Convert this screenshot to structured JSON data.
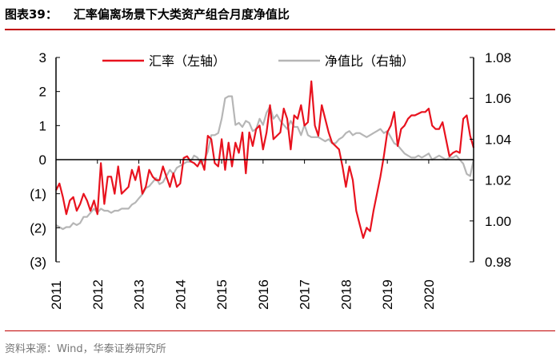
{
  "title": {
    "number": "图表39：",
    "text": "汇率偏离场景下大类资产组合月度净值比"
  },
  "source": "资料来源：Wind，华泰证券研究所",
  "colors": {
    "fx": "#e8121e",
    "nav": "#b6b6b6",
    "accent": "#c00000"
  },
  "chart_data": {
    "type": "line",
    "title": "汇率偏离场景下大类资产组合月度净值比",
    "x_start": "2011-01",
    "x_end": "2020-05",
    "x_ticks": [
      "2011",
      "2012",
      "2013",
      "2014",
      "2015",
      "2016",
      "2017",
      "2018",
      "2019",
      "2020"
    ],
    "left_axis": {
      "range": [
        -3,
        3
      ],
      "ticks": [
        "3",
        "2",
        "1",
        "0",
        "(1)",
        "(2)",
        "(3)"
      ]
    },
    "right_axis": {
      "range": [
        0.98,
        1.08
      ],
      "ticks": [
        "1.08",
        "1.06",
        "1.04",
        "1.02",
        "1.00",
        "0.98"
      ]
    },
    "legend_position": "top",
    "series": [
      {
        "name": "汇率（左轴）",
        "axis": "left",
        "color": "#e8121e",
        "values": [
          -0.9,
          -0.7,
          -1.1,
          -1.6,
          -1.2,
          -1.1,
          -1.5,
          -1.3,
          -1.0,
          -1.2,
          -1.5,
          -1.2,
          -1.6,
          -0.1,
          -1.3,
          -0.5,
          -0.5,
          -1.0,
          -0.2,
          -1.0,
          -0.9,
          -0.8,
          -0.3,
          -0.6,
          -0.2,
          -1.0,
          -0.8,
          -0.3,
          -0.5,
          -0.6,
          -0.6,
          -0.2,
          -0.5,
          -0.8,
          -0.4,
          -0.8,
          -0.7,
          0.05,
          0.1,
          -0.05,
          -0.1,
          -0.2,
          0.0,
          -0.3,
          0.7,
          0.6,
          -0.1,
          -0.2,
          0.6,
          -0.3,
          0.5,
          -0.2,
          0.5,
          0.2,
          0.8,
          -0.4,
          0.8,
          0.4,
          0.9,
          1.0,
          0.3,
          0.8,
          1.6,
          0.6,
          0.7,
          0.8,
          1.5,
          1.2,
          0.3,
          1.3,
          1.2,
          1.6,
          1.0,
          1.1,
          2.3,
          1.0,
          0.7,
          1.6,
          1.2,
          0.8,
          0.5,
          0.4,
          0.3,
          -0.2,
          -0.8,
          -0.2,
          -0.6,
          -1.5,
          -1.9,
          -2.3,
          -2.0,
          -2.1,
          -1.5,
          -1.0,
          -0.5,
          0.1,
          0.8,
          1.0,
          1.4,
          0.4,
          0.9,
          1.0,
          1.2,
          1.3,
          1.3,
          1.35,
          1.4,
          1.4,
          1.5,
          1.0,
          0.9,
          0.9,
          1.1,
          0.6,
          0.1,
          0.2,
          0.25,
          0.2,
          1.2,
          1.3,
          0.7,
          0.35
        ]
      },
      {
        "name": "净值比（右轴）",
        "axis": "right",
        "color": "#b6b6b6",
        "values": [
          0.998,
          0.997,
          0.996,
          0.997,
          0.997,
          0.999,
          0.998,
          0.999,
          1.002,
          1.002,
          1.004,
          1.006,
          1.004,
          1.006,
          1.005,
          1.005,
          1.004,
          1.005,
          1.005,
          1.006,
          1.006,
          1.006,
          1.008,
          1.009,
          1.011,
          1.013,
          1.016,
          1.017,
          1.019,
          1.021,
          1.018,
          1.019,
          1.022,
          1.025,
          1.023,
          1.026,
          1.027,
          1.028,
          1.029,
          1.029,
          1.032,
          1.031,
          1.028,
          1.03,
          1.034,
          1.042,
          1.042,
          1.043,
          1.05,
          1.06,
          1.061,
          1.061,
          1.047,
          1.048,
          1.046,
          1.049,
          1.048,
          1.044,
          1.045,
          1.05,
          1.047,
          1.053,
          1.056,
          1.05,
          1.052,
          1.049,
          1.047,
          1.045,
          1.049,
          1.046,
          1.046,
          1.042,
          1.047,
          1.042,
          1.041,
          1.041,
          1.041,
          1.04,
          1.039,
          1.04,
          1.038,
          1.038,
          1.04,
          1.041,
          1.043,
          1.044,
          1.042,
          1.043,
          1.043,
          1.042,
          1.041,
          1.042,
          1.043,
          1.044,
          1.045,
          1.043,
          1.044,
          1.041,
          1.038,
          1.037,
          1.035,
          1.033,
          1.032,
          1.031,
          1.031,
          1.032,
          1.031,
          1.032,
          1.033,
          1.03,
          1.031,
          1.032,
          1.031,
          1.03,
          1.031,
          1.031,
          1.032,
          1.03,
          1.028,
          1.023,
          1.022,
          1.03
        ]
      }
    ]
  }
}
